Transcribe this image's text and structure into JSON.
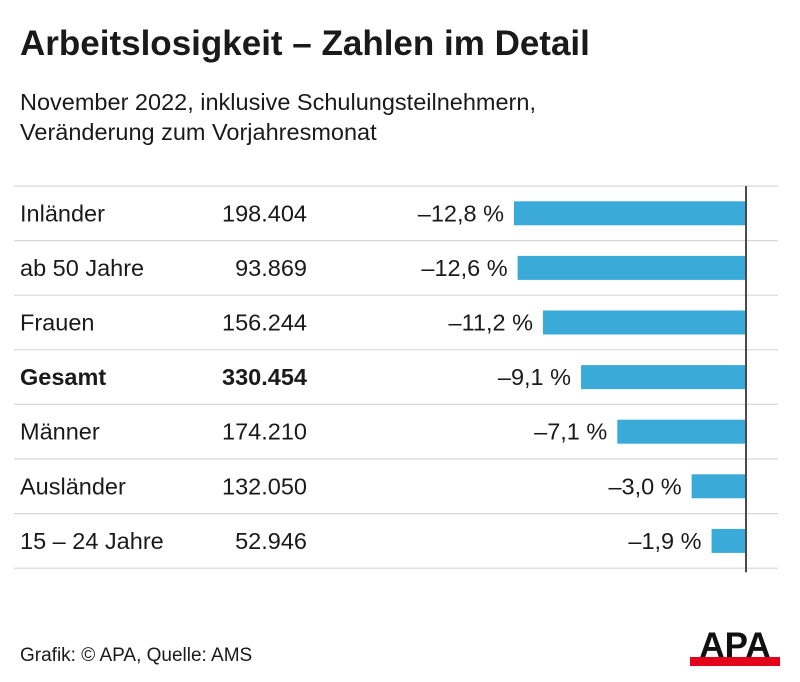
{
  "title": "Arbeitslosigkeit – Zahlen im Detail",
  "subtitle_line1": "November 2022, inklusive Schulungsteilnehmern,",
  "subtitle_line2": "Veränderung zum Vorjahresmonat",
  "source": "Grafik: © APA, Quelle: AMS",
  "logo_text": "APA",
  "colors": {
    "bar": "#3aaad8",
    "grid": "#d6d6d6",
    "axis": "#4a4a4a",
    "logo_red": "#e2001a"
  },
  "chart_data": {
    "type": "bar",
    "orientation": "horizontal",
    "categories": [
      "Inländer",
      "ab 50 Jahre",
      "Frauen",
      "Gesamt",
      "Männer",
      "Ausländer",
      "15 – 24 Jahre"
    ],
    "counts": [
      "198.404",
      "93.869",
      "156.244",
      "330.454",
      "174.210",
      "132.050",
      "52.946"
    ],
    "values": [
      -12.8,
      -12.6,
      -11.2,
      -9.1,
      -7.1,
      -3.0,
      -1.9
    ],
    "value_labels": [
      "–12,8 %",
      "–12,6 %",
      "–11,2 %",
      "–9,1 %",
      "–7,1 %",
      "–3,0 %",
      "–1,9 %"
    ],
    "highlight": [
      "Gesamt"
    ],
    "xlim": [
      -12.8,
      0
    ]
  }
}
